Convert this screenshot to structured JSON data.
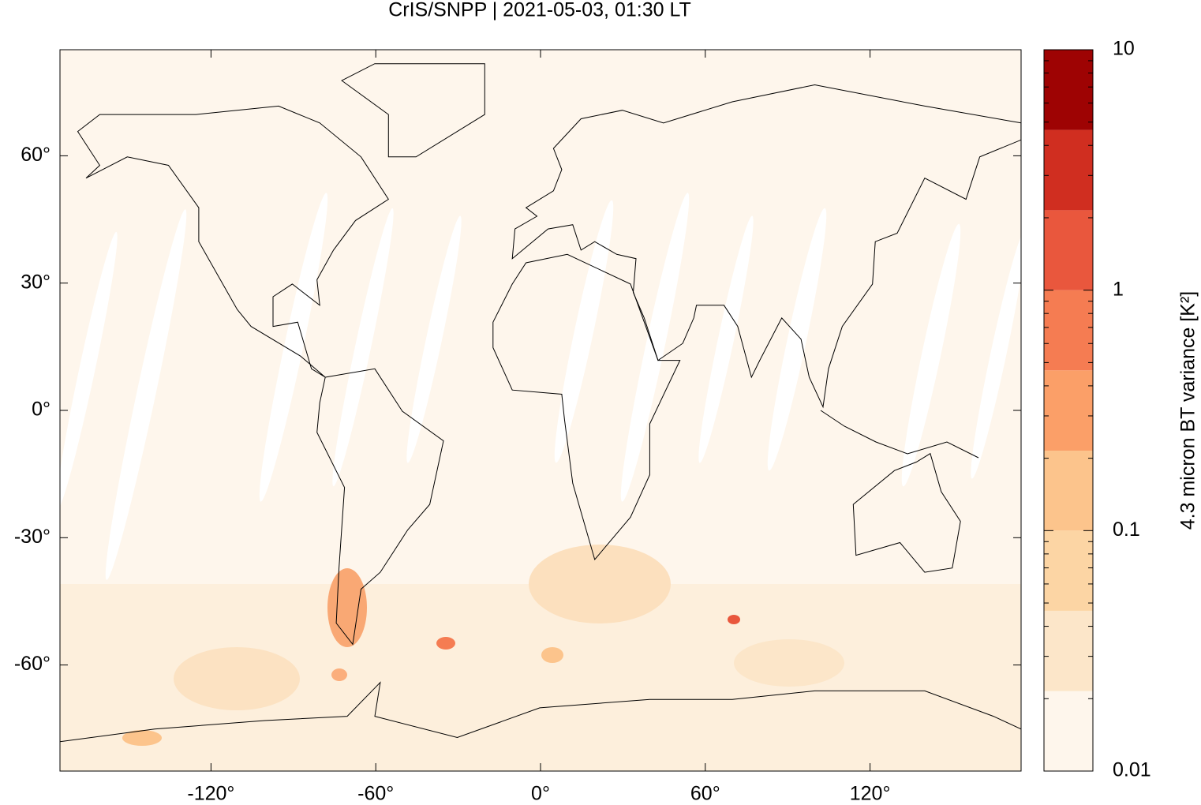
{
  "chart_data": {
    "type": "map",
    "title": "CrIS/SNPP | 2021-05-03, 01:30 LT",
    "xlim": [
      -175,
      175
    ],
    "ylim": [
      -85,
      85
    ],
    "xticks": [
      {
        "value": -120,
        "label": "-120°"
      },
      {
        "value": -60,
        "label": "-60°"
      },
      {
        "value": 0,
        "label": "0°"
      },
      {
        "value": 60,
        "label": "60°"
      },
      {
        "value": 120,
        "label": "120°"
      }
    ],
    "yticks": [
      {
        "value": 60,
        "label": "60°"
      },
      {
        "value": 30,
        "label": "30°"
      },
      {
        "value": 0,
        "label": "0°"
      },
      {
        "value": -30,
        "label": "-30°"
      },
      {
        "value": -60,
        "label": "-60°"
      }
    ],
    "colorbar": {
      "label": "4.3 micron BT variance [K²]",
      "log": true,
      "lim": [
        0.01,
        10
      ],
      "ticks": [
        0.01,
        0.1,
        1,
        10
      ],
      "levels": [
        0.01,
        0.0215,
        0.0464,
        0.1,
        0.215,
        0.464,
        1,
        2.15,
        4.64,
        10
      ],
      "colors": [
        "#fef6ec",
        "#fce6c9",
        "#fcd5a4",
        "#fcc48c",
        "#fb9f68",
        "#f57c52",
        "#e9573d",
        "#d02e20",
        "#9e0303"
      ]
    }
  }
}
